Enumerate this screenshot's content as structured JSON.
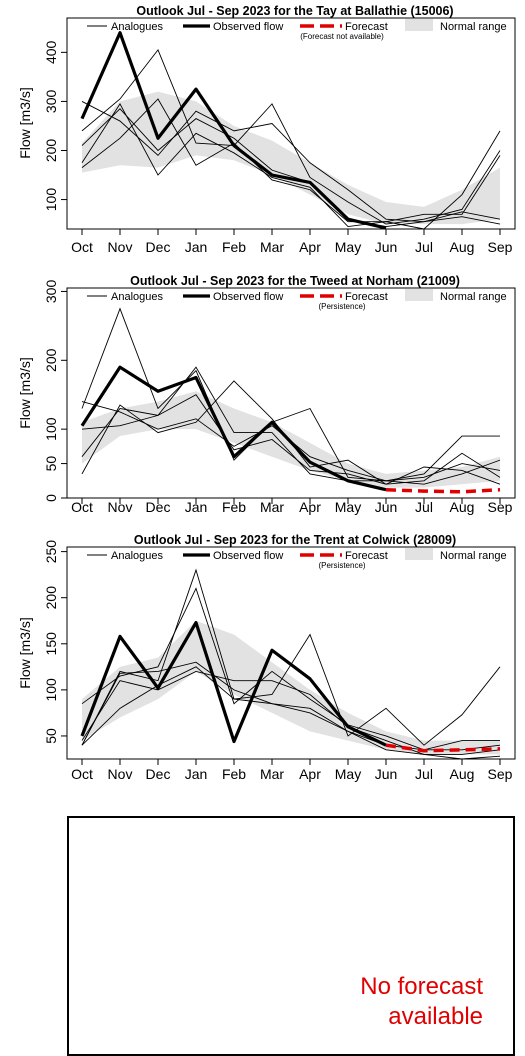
{
  "chart_data": [
    {
      "type": "line",
      "title": "Outlook Jul - Sep 2023 for the Tay at Ballathie (15006)",
      "ylabel": "Flow [m3/s]",
      "xlabel": "",
      "categories": [
        "Oct",
        "Nov",
        "Dec",
        "Jan",
        "Feb",
        "Mar",
        "Apr",
        "May",
        "Jun",
        "Jul",
        "Aug",
        "Sep"
      ],
      "ylim": [
        40,
        470
      ],
      "yticks": [
        100,
        200,
        300,
        400
      ],
      "legend": {
        "analogues": "Analogues",
        "observed": "Observed flow",
        "forecast": "Forecast",
        "forecast_note": "(Forecast not available)",
        "normal": "Normal range"
      },
      "normal_range": {
        "upper": [
          215,
          300,
          320,
          300,
          250,
          220,
          175,
          130,
          95,
          85,
          120,
          165
        ],
        "lower": [
          155,
          170,
          165,
          190,
          180,
          150,
          110,
          70,
          50,
          50,
          50,
          60
        ]
      },
      "observed": [
        265,
        440,
        225,
        325,
        210,
        150,
        135,
        60,
        42,
        null,
        null,
        null
      ],
      "forecast": [],
      "analogues": [
        [
          300,
          260,
          190,
          280,
          240,
          255,
          175,
          120,
          60,
          55,
          65,
          50
        ],
        [
          240,
          305,
          405,
          215,
          210,
          295,
          145,
          95,
          50,
          60,
          80,
          200
        ],
        [
          175,
          295,
          150,
          235,
          195,
          145,
          125,
          45,
          55,
          40,
          110,
          240
        ],
        [
          210,
          285,
          200,
          265,
          225,
          160,
          135,
          60,
          45,
          55,
          75,
          60
        ],
        [
          165,
          225,
          305,
          170,
          215,
          140,
          120,
          55,
          55,
          70,
          70,
          190
        ]
      ]
    },
    {
      "type": "line",
      "title": "Outlook Jul - Sep 2023 for the Tweed at Norham (21009)",
      "ylabel": "Flow [m3/s]",
      "xlabel": "",
      "categories": [
        "Oct",
        "Nov",
        "Dec",
        "Jan",
        "Feb",
        "Mar",
        "Apr",
        "May",
        "Jun",
        "Jul",
        "Aug",
        "Sep"
      ],
      "ylim": [
        0,
        305
      ],
      "yticks": [
        0,
        50,
        100,
        200,
        300
      ],
      "legend": {
        "analogues": "Analogues",
        "observed": "Observed flow",
        "forecast": "Forecast",
        "forecast_note": "(Persistence)",
        "normal": "Normal range"
      },
      "normal_range": {
        "upper": [
          110,
          130,
          140,
          155,
          130,
          110,
          80,
          50,
          35,
          40,
          45,
          60
        ],
        "lower": [
          50,
          90,
          100,
          100,
          80,
          60,
          40,
          25,
          15,
          15,
          20,
          25
        ]
      },
      "observed": [
        105,
        190,
        155,
        175,
        60,
        110,
        52,
        25,
        12,
        null,
        null,
        null
      ],
      "forecast": [
        12,
        10,
        9,
        12
      ],
      "forecast_start": "Jun",
      "analogues": [
        [
          130,
          275,
          130,
          185,
          55,
          110,
          130,
          30,
          25,
          35,
          90,
          90
        ],
        [
          35,
          135,
          95,
          110,
          170,
          115,
          45,
          55,
          20,
          45,
          40,
          20
        ],
        [
          60,
          130,
          120,
          190,
          95,
          95,
          35,
          25,
          25,
          30,
          50,
          40
        ],
        [
          140,
          125,
          100,
          115,
          75,
          105,
          60,
          40,
          25,
          20,
          35,
          55
        ],
        [
          100,
          105,
          120,
          150,
          70,
          85,
          40,
          35,
          20,
          25,
          65,
          30
        ]
      ]
    },
    {
      "type": "line",
      "title": "Outlook Jul - Sep 2023 for the Trent at Colwick (28009)",
      "ylabel": "Flow [m3/s]",
      "xlabel": "",
      "categories": [
        "Oct",
        "Nov",
        "Dec",
        "Jan",
        "Feb",
        "Mar",
        "Apr",
        "May",
        "Jun",
        "Jul",
        "Aug",
        "Sep"
      ],
      "ylim": [
        25,
        255
      ],
      "yticks": [
        50,
        100,
        150,
        200,
        250
      ],
      "legend": {
        "analogues": "Analogues",
        "observed": "Observed flow",
        "forecast": "Forecast",
        "forecast_note": "(Persistence)",
        "normal": "Normal range"
      },
      "normal_range": {
        "upper": [
          90,
          125,
          135,
          175,
          160,
          130,
          100,
          75,
          55,
          45,
          45,
          45
        ],
        "lower": [
          45,
          70,
          90,
          120,
          95,
          75,
          55,
          45,
          35,
          30,
          30,
          30
        ]
      },
      "observed": [
        50,
        158,
        102,
        173,
        44,
        143,
        112,
        60,
        40,
        null,
        null,
        null
      ],
      "forecast": [
        40,
        34,
        35,
        36
      ],
      "forecast_start": "Jun",
      "analogues": [
        [
          40,
          120,
          110,
          230,
          90,
          95,
          160,
          50,
          80,
          40,
          73,
          125
        ],
        [
          85,
          115,
          125,
          210,
          85,
          120,
          90,
          62,
          50,
          35,
          45,
          45
        ],
        [
          40,
          118,
          120,
          130,
          100,
          85,
          75,
          55,
          40,
          35,
          35,
          40
        ],
        [
          45,
          110,
          100,
          120,
          110,
          110,
          95,
          60,
          45,
          30,
          30,
          35
        ],
        [
          40,
          80,
          105,
          125,
          90,
          85,
          80,
          55,
          35,
          30,
          25,
          28
        ]
      ]
    }
  ],
  "no_forecast": {
    "line1": "No forecast",
    "line2": "available"
  }
}
